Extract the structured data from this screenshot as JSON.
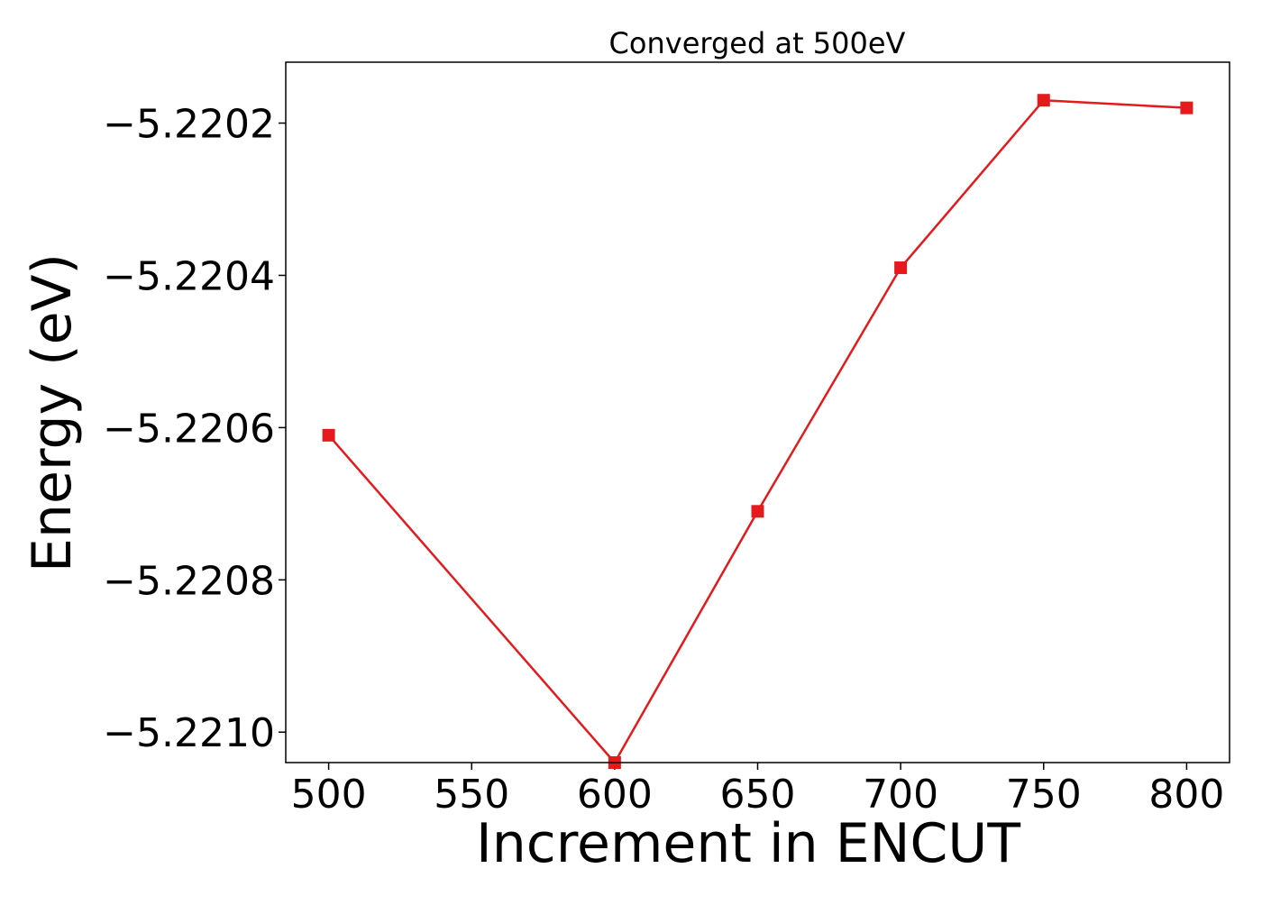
{
  "chart_data": {
    "type": "line",
    "title": "Converged at 500eV",
    "xlabel": "Increment in ENCUT",
    "ylabel": "Energy (eV)",
    "x": [
      500,
      600,
      650,
      700,
      750,
      800
    ],
    "xticks": [
      500,
      550,
      600,
      650,
      700,
      750,
      800
    ],
    "xtick_labels": [
      "500",
      "550",
      "600",
      "650",
      "700",
      "750",
      "800"
    ],
    "yticks": [
      -5.2202,
      -5.2204,
      -5.2206,
      -5.2208,
      -5.221
    ],
    "ytick_labels": [
      "−5.2202",
      "−5.2204",
      "−5.2206",
      "−5.2208",
      "−5.2210"
    ],
    "xlim": [
      485,
      815
    ],
    "ylim": [
      -5.22104,
      -5.22012
    ],
    "series": [
      {
        "values": [
          -5.22061,
          -5.22104,
          -5.22071,
          -5.22039,
          -5.22017,
          -5.22018
        ],
        "color": "#e41a1c",
        "marker": "square"
      }
    ],
    "grid": false,
    "legend": "none"
  }
}
